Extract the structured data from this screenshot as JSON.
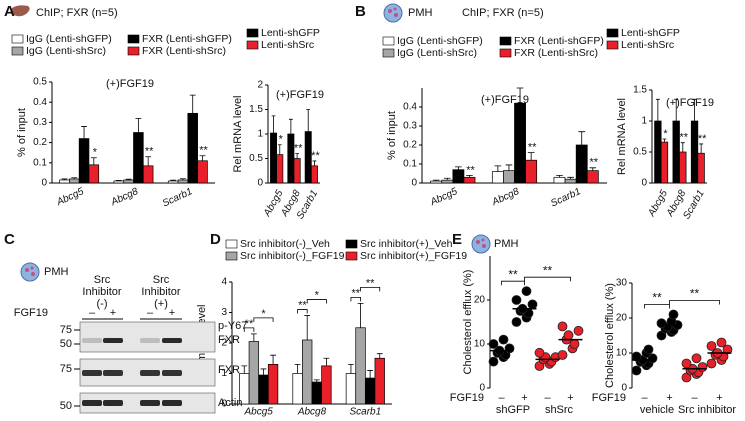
{
  "chart_data": [
    {
      "type": "bar",
      "panel": "A",
      "header": "ChIP; FXR (n=5)",
      "title": "(+)FGF19",
      "y_label": "% of input",
      "categories": [
        "Abcg5",
        "Abcg8",
        "Scarb1"
      ],
      "series": [
        {
          "name": "IgG (Lenti-shGFP)",
          "color": "#ffffff",
          "values": [
            0.015,
            0.01,
            0.01
          ],
          "errors": [
            0.005,
            0.003,
            0.004
          ]
        },
        {
          "name": "IgG (Lenti-shSrc)",
          "color": "#a6a6a6",
          "values": [
            0.02,
            0.015,
            0.015
          ],
          "errors": [
            0.006,
            0.004,
            0.006
          ]
        },
        {
          "name": "FXR (Lenti-shGFP)",
          "color": "#000000",
          "values": [
            0.22,
            0.25,
            0.345
          ],
          "errors": [
            0.06,
            0.07,
            0.09
          ]
        },
        {
          "name": "FXR (Lenti-shSrc)",
          "color": "#e8202a",
          "values": [
            0.09,
            0.085,
            0.11
          ],
          "errors": [
            0.035,
            0.045,
            0.025
          ],
          "significance": [
            "*",
            "**",
            "**"
          ]
        }
      ],
      "ylim": [
        0,
        0.5
      ],
      "yticks": [
        0,
        0.1,
        0.2,
        0.3,
        0.4,
        0.5
      ]
    },
    {
      "type": "bar",
      "title": "(+)FGF19",
      "y_label": "Rel mRNA level",
      "categories": [
        "Abcg5",
        "Abcg8",
        "Scarb1"
      ],
      "series": [
        {
          "name": "Lenti-shGFP",
          "color": "#000000",
          "values": [
            1.02,
            1.0,
            1.05
          ],
          "errors": [
            0.35,
            0.3,
            0.45
          ]
        },
        {
          "name": "Lenti-shSrc",
          "color": "#e8202a",
          "values": [
            0.58,
            0.5,
            0.35
          ],
          "errors": [
            0.2,
            0.1,
            0.1
          ],
          "significance": [
            "*",
            "**",
            "**"
          ]
        }
      ],
      "ylim": [
        0,
        2
      ],
      "yticks": [
        0,
        0.5,
        1,
        1.5,
        2
      ]
    },
    {
      "type": "bar",
      "panel": "B",
      "cell": "PMH",
      "header": "ChIP; FXR (n=5)",
      "title": "(+)FGF19",
      "y_label": "% of input",
      "categories": [
        "Abcg5",
        "Abcg8",
        "Scarb1"
      ],
      "series": [
        {
          "name": "IgG (Lenti-shGFP)",
          "color": "#ffffff",
          "values": [
            0.01,
            0.06,
            0.03
          ],
          "errors": [
            0.005,
            0.03,
            0.01
          ]
        },
        {
          "name": "IgG (Lenti-shSrc)",
          "color": "#a6a6a6",
          "values": [
            0.015,
            0.065,
            0.02
          ],
          "errors": [
            0.01,
            0.03,
            0.01
          ]
        },
        {
          "name": "FXR (Lenti-shGFP)",
          "color": "#000000",
          "values": [
            0.07,
            0.42,
            0.2
          ],
          "errors": [
            0.015,
            0.08,
            0.07
          ]
        },
        {
          "name": "FXR (Lenti-shSrc)",
          "color": "#e8202a",
          "values": [
            0.03,
            0.12,
            0.065
          ],
          "errors": [
            0.01,
            0.04,
            0.015
          ],
          "significance": [
            "**",
            "**",
            "**"
          ]
        }
      ],
      "ylim": [
        0,
        0.5
      ],
      "yticks": [
        0,
        0.1,
        0.2,
        0.3,
        0.4
      ]
    },
    {
      "type": "bar",
      "title": "(+)FGF19",
      "y_label": "Rel mRNA level",
      "categories": [
        "Abcg5",
        "Abcg8",
        "Scarb1"
      ],
      "series": [
        {
          "name": "Lenti-shGFP",
          "color": "#000000",
          "values": [
            1.0,
            1.0,
            1.0
          ],
          "errors": [
            0.35,
            0.35,
            0.35
          ]
        },
        {
          "name": "Lenti-shSrc",
          "color": "#e8202a",
          "values": [
            0.66,
            0.5,
            0.48
          ],
          "errors": [
            0.05,
            0.15,
            0.15
          ],
          "significance": [
            "*",
            "**",
            "**"
          ]
        }
      ],
      "ylim": [
        0,
        1.5
      ],
      "yticks": [
        0,
        0.5,
        1,
        1.5
      ]
    },
    {
      "type": "bar",
      "panel": "D",
      "y_label": "Rel mRNA level",
      "categories": [
        "Abcg5",
        "Abcg8",
        "Scarb1"
      ],
      "series": [
        {
          "name": "Src inhibitor(-)_Veh",
          "color": "#ffffff",
          "values": [
            1.0,
            1.0,
            1.0
          ],
          "errors": [
            0.25,
            0.3,
            0.3
          ]
        },
        {
          "name": "Src inhibitor(-)_FGF19",
          "color": "#a6a6a6",
          "values": [
            2.05,
            2.1,
            2.5
          ],
          "errors": [
            0.25,
            0.8,
            0.8
          ],
          "significance": [
            "**",
            "**",
            "**"
          ]
        },
        {
          "name": "Src inhibitor(+)_Veh",
          "color": "#000000",
          "values": [
            0.95,
            0.72,
            0.85
          ],
          "errors": [
            0.2,
            0.07,
            0.25
          ]
        },
        {
          "name": "Src inhibitor(+)_FGF19",
          "color": "#e8202a",
          "values": [
            1.3,
            1.25,
            1.5
          ],
          "errors": [
            0.3,
            0.25,
            0.15
          ],
          "significance": [
            "*",
            "*",
            "**"
          ]
        }
      ],
      "ylim": [
        0,
        4
      ],
      "yticks": [
        0,
        1,
        2,
        3,
        4
      ]
    },
    {
      "type": "dot",
      "panel": "E",
      "cell": "PMH",
      "y_label": "Cholesterol efflux (%)",
      "x_label": "FGF19",
      "categories": [
        "–",
        "+",
        "–",
        "+"
      ],
      "groups": [
        "shGFP",
        "shSrc"
      ],
      "colors": [
        "#000000",
        "#000000",
        "#e8202a",
        "#e8202a"
      ],
      "points": [
        [
          6,
          7,
          7.5,
          8,
          8.5,
          9,
          10,
          11
        ],
        [
          15,
          16,
          17,
          17.5,
          18,
          19,
          20,
          22
        ],
        [
          5,
          5.5,
          6,
          6.5,
          7,
          7,
          8
        ],
        [
          7.5,
          9,
          10,
          11,
          12,
          13,
          14
        ]
      ],
      "means": [
        8.5,
        18,
        6.5,
        11
      ],
      "brackets": [
        {
          "label": "**"
        },
        {
          "label": "**"
        }
      ],
      "ylim": [
        0,
        30
      ],
      "yticks": [
        0,
        10,
        20
      ]
    },
    {
      "type": "dot",
      "y_label": "Cholesterol efflux (%)",
      "x_label": "FGF19",
      "categories": [
        "–",
        "+",
        "–",
        "+"
      ],
      "groups": [
        "vehicle",
        "Src inhibitor"
      ],
      "colors": [
        "#000000",
        "#000000",
        "#e8202a",
        "#e8202a"
      ],
      "points": [
        [
          5,
          6.5,
          7,
          7.5,
          8,
          8.5,
          9,
          10,
          11
        ],
        [
          15,
          16,
          16.5,
          17,
          17.5,
          18,
          18.5,
          19,
          21
        ],
        [
          3,
          4,
          4.5,
          5,
          5.5,
          6,
          7,
          8.5
        ],
        [
          7,
          8,
          9,
          9.5,
          10,
          11,
          12,
          13
        ]
      ],
      "means": [
        8,
        18,
        5.5,
        10
      ],
      "brackets": [
        {
          "label": "**"
        },
        {
          "label": "**"
        }
      ],
      "ylim": [
        0,
        30
      ],
      "yticks": [
        0,
        10,
        20,
        30
      ]
    }
  ],
  "blot": {
    "panel": "C",
    "cell": "PMH",
    "groups": [
      [
        "Src",
        "Inhibitor",
        "(-)"
      ],
      [
        "Src",
        "Inhibitor",
        "(+)"
      ]
    ],
    "treatment": "FGF19",
    "lanes": [
      "–",
      "+",
      "–",
      "+"
    ],
    "bands": [
      "p-Y67",
      "FXR",
      "FXR",
      "Actin"
    ],
    "markers": [
      75,
      50,
      75,
      50
    ]
  }
}
